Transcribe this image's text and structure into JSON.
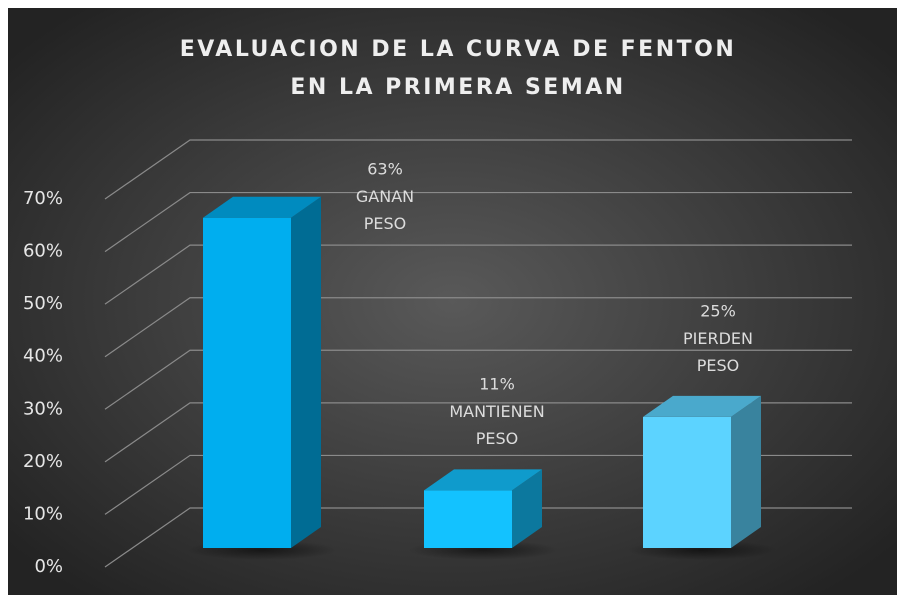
{
  "chart_data": {
    "type": "bar3d",
    "title": [
      "EVALUACION DE LA CURVA DE FENTON",
      "EN LA PRIMERA SEMAN"
    ],
    "categories": [
      "GANAN PESO",
      "MANTIENEN PESO",
      "PIERDEN PESO"
    ],
    "values": [
      63,
      11,
      25
    ],
    "value_labels": [
      "63%",
      "11%",
      "25%"
    ],
    "colors": [
      "#00aeef",
      "#13c2ff",
      "#5cd3ff"
    ],
    "ylim": [
      0,
      70
    ],
    "yticks": [
      {
        "value": 0,
        "label": "0%"
      },
      {
        "value": 10,
        "label": "10%"
      },
      {
        "value": 20,
        "label": "20%"
      },
      {
        "value": 30,
        "label": "30%"
      },
      {
        "value": 40,
        "label": "40%"
      },
      {
        "value": 50,
        "label": "50%"
      },
      {
        "value": 60,
        "label": "60%"
      },
      {
        "value": 70,
        "label": "70%"
      }
    ],
    "grid": true
  }
}
